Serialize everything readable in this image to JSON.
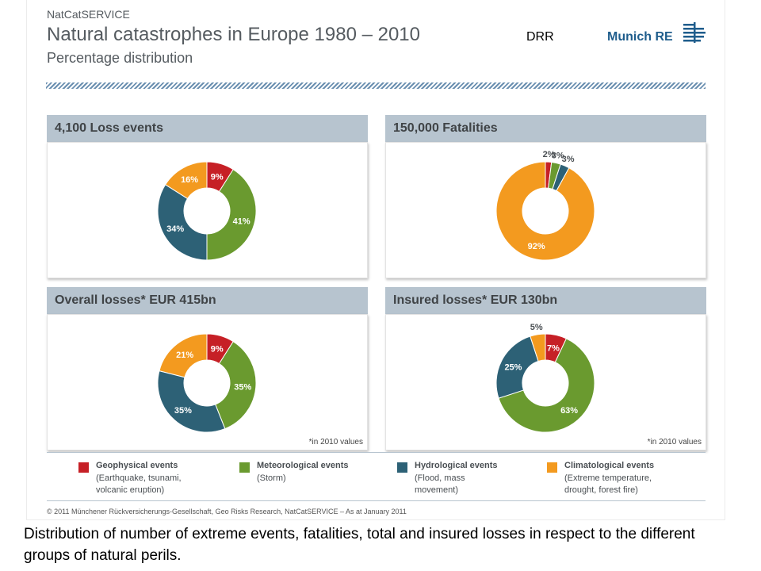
{
  "header": {
    "service": "NatCatSERVICE",
    "title": "Natural catastrophes in Europe 1980 – 2010",
    "subtitle": "Percentage distribution",
    "tag": "DRR",
    "logo_text": "Munich RE"
  },
  "colors": {
    "geophysical": "#c62026",
    "meteorological": "#6a9a2f",
    "hydrological": "#2d6176",
    "climatological": "#f39a1f",
    "panel_header": "#b7c4cf"
  },
  "chart_data": [
    {
      "type": "pie",
      "title": "4,100 Loss events",
      "categories": [
        "Geophysical events",
        "Meteorological events",
        "Hydrological events",
        "Climatological events"
      ],
      "values": [
        9,
        41,
        34,
        16
      ],
      "labels": [
        "9%",
        "41%",
        "34%",
        "16%"
      ]
    },
    {
      "type": "pie",
      "title": "150,000 Fatalities",
      "categories": [
        "Geophysical events",
        "Meteorological events",
        "Hydrological events",
        "Climatological events"
      ],
      "values": [
        2,
        3,
        3,
        92
      ],
      "labels": [
        "2%",
        "3%",
        "3%",
        "92%"
      ]
    },
    {
      "type": "pie",
      "title": "Overall losses* EUR 415bn",
      "categories": [
        "Geophysical events",
        "Meteorological events",
        "Hydrological events",
        "Climatological events"
      ],
      "values": [
        9,
        35,
        35,
        21
      ],
      "labels": [
        "9%",
        "35%",
        "35%",
        "21%"
      ],
      "note": "*in 2010 values"
    },
    {
      "type": "pie",
      "title": "Insured losses* EUR 130bn",
      "categories": [
        "Geophysical events",
        "Meteorological events",
        "Hydrological events",
        "Climatological events"
      ],
      "values": [
        7,
        63,
        25,
        5
      ],
      "labels": [
        "7%",
        "63%",
        "25%",
        "5%"
      ],
      "note": "*in 2010 values"
    }
  ],
  "legend": [
    {
      "name": "Geophysical events",
      "desc": "(Earthquake, tsunami, volcanic eruption)"
    },
    {
      "name": "Meteorological events",
      "desc": "(Storm)"
    },
    {
      "name": "Hydrological events",
      "desc": "(Flood, mass movement)"
    },
    {
      "name": "Climatological events",
      "desc": "(Extreme temperature, drought, forest fire)"
    }
  ],
  "footer": {
    "copyright": "© 2011 Münchener Rückversicherungs-Gesellschaft, Geo Risks Research, NatCatSERVICE – As at January 2011"
  },
  "caption": "Distribution of number of extreme events, fatalities, total and insured losses in respect to the different groups of natural perils."
}
